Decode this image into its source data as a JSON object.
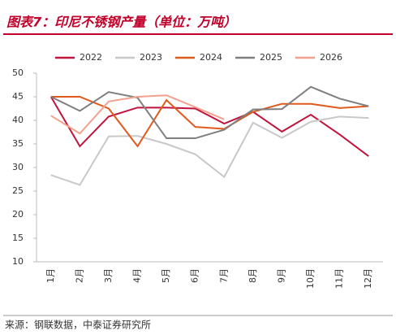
{
  "chart_data": {
    "type": "line",
    "title": "图表7：印尼不锈钢产量（单位：万吨）",
    "source": "来源：钢联数据，中泰证券研究所",
    "categories": [
      "1月",
      "2月",
      "3月",
      "4月",
      "5月",
      "6月",
      "7月",
      "8月",
      "9月",
      "10月",
      "11月",
      "12月"
    ],
    "series": [
      {
        "name": "2022",
        "color": "#c0143c",
        "values": [
          45,
          34.5,
          40.8,
          42.7,
          42.7,
          42.5,
          39.3,
          41.8,
          37.6,
          41.2,
          37,
          32.4
        ]
      },
      {
        "name": "2023",
        "color": "#c8c8c8",
        "values": [
          28.4,
          26.3,
          36.6,
          36.7,
          35,
          32.8,
          28,
          39.5,
          36.3,
          39.7,
          40.8,
          40.5
        ]
      },
      {
        "name": "2024",
        "color": "#e05a1e",
        "values": [
          45,
          45,
          42.5,
          34.5,
          44.3,
          38.6,
          38.2,
          41.8,
          43.5,
          43.5,
          42.6,
          43
        ]
      },
      {
        "name": "2025",
        "color": "#7f7f7f",
        "values": [
          45,
          42,
          46,
          44.8,
          36.2,
          36.2,
          38,
          42.3,
          42.4,
          47.1,
          44.6,
          43
        ]
      },
      {
        "name": "2026",
        "color": "#f4a08c",
        "values": [
          41,
          37.2,
          44,
          45,
          45.3,
          42.8,
          40.2,
          null,
          null,
          null,
          null,
          null
        ]
      }
    ],
    "ylim": [
      10,
      50
    ],
    "yticks": [
      10,
      15,
      20,
      25,
      30,
      35,
      40,
      45,
      50
    ],
    "grid": false
  }
}
